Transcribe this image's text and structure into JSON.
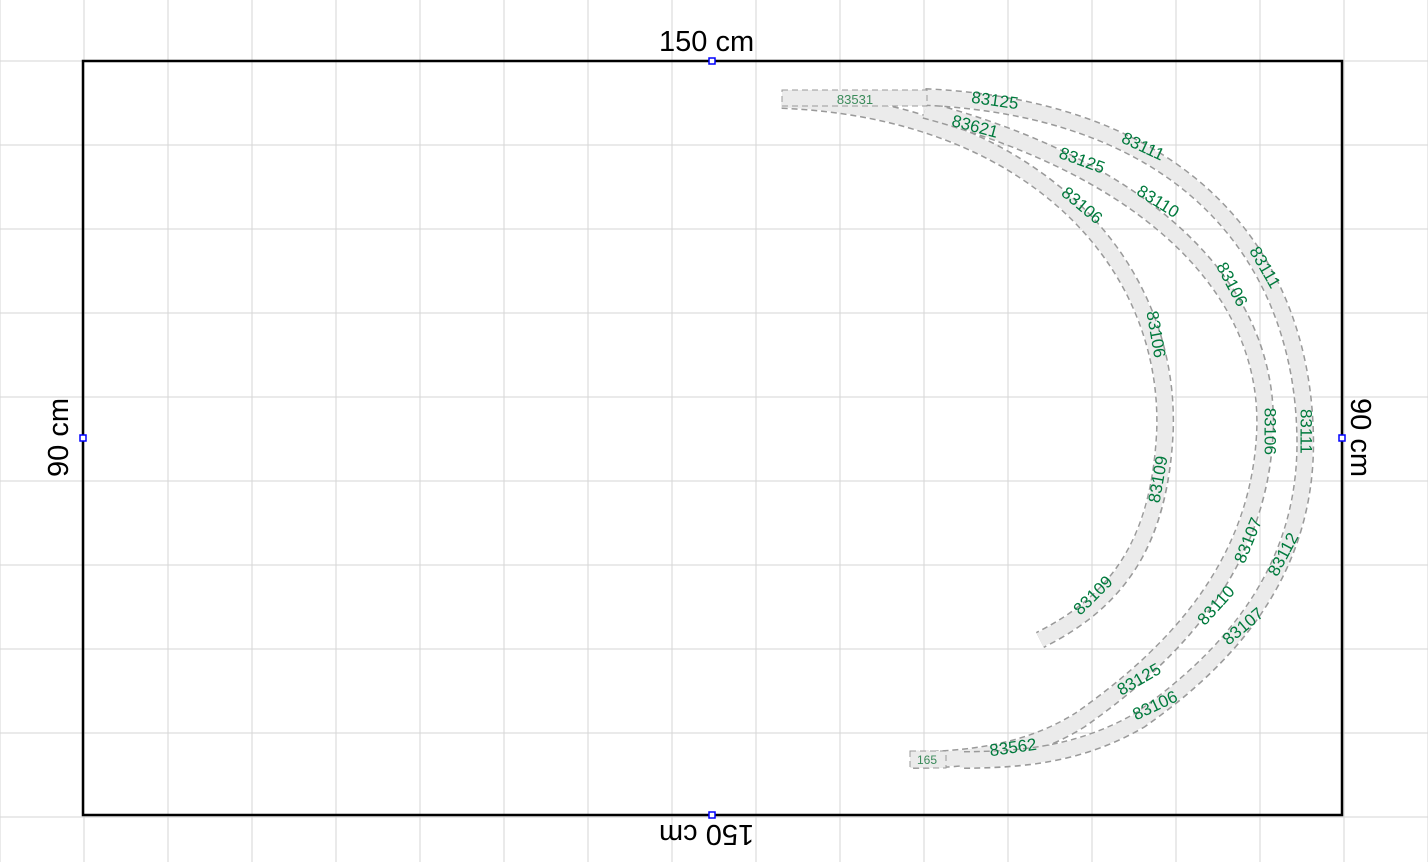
{
  "layout": {
    "width_label": "150 cm",
    "height_label": "90 cm"
  },
  "colors": {
    "grid": "#d6d6d6",
    "board_border": "#000000",
    "handle": "#0000ff",
    "track_fill": "#ebebeb",
    "track_outline": "#9a9a9a",
    "part_label": "#007a3d",
    "small_label": "#3a8a5a"
  },
  "parts": [
    {
      "id": "p1",
      "label": "83531"
    },
    {
      "id": "p2",
      "label": "83125"
    },
    {
      "id": "p3",
      "label": "83621"
    },
    {
      "id": "p4",
      "label": "83111"
    },
    {
      "id": "p5",
      "label": "83125"
    },
    {
      "id": "p6",
      "label": "83110"
    },
    {
      "id": "p7",
      "label": "83106"
    },
    {
      "id": "p8",
      "label": "83111"
    },
    {
      "id": "p9",
      "label": "83106"
    },
    {
      "id": "p10",
      "label": "83106"
    },
    {
      "id": "p11",
      "label": "83106"
    },
    {
      "id": "p12",
      "label": "83111"
    },
    {
      "id": "p13",
      "label": "83109"
    },
    {
      "id": "p14",
      "label": "83107"
    },
    {
      "id": "p15",
      "label": "83112"
    },
    {
      "id": "p16",
      "label": "83109"
    },
    {
      "id": "p17",
      "label": "83110"
    },
    {
      "id": "p18",
      "label": "83107"
    },
    {
      "id": "p19",
      "label": "83125"
    },
    {
      "id": "p20",
      "label": "83106"
    },
    {
      "id": "p21",
      "label": "83562"
    },
    {
      "id": "p22",
      "label": "165"
    }
  ]
}
